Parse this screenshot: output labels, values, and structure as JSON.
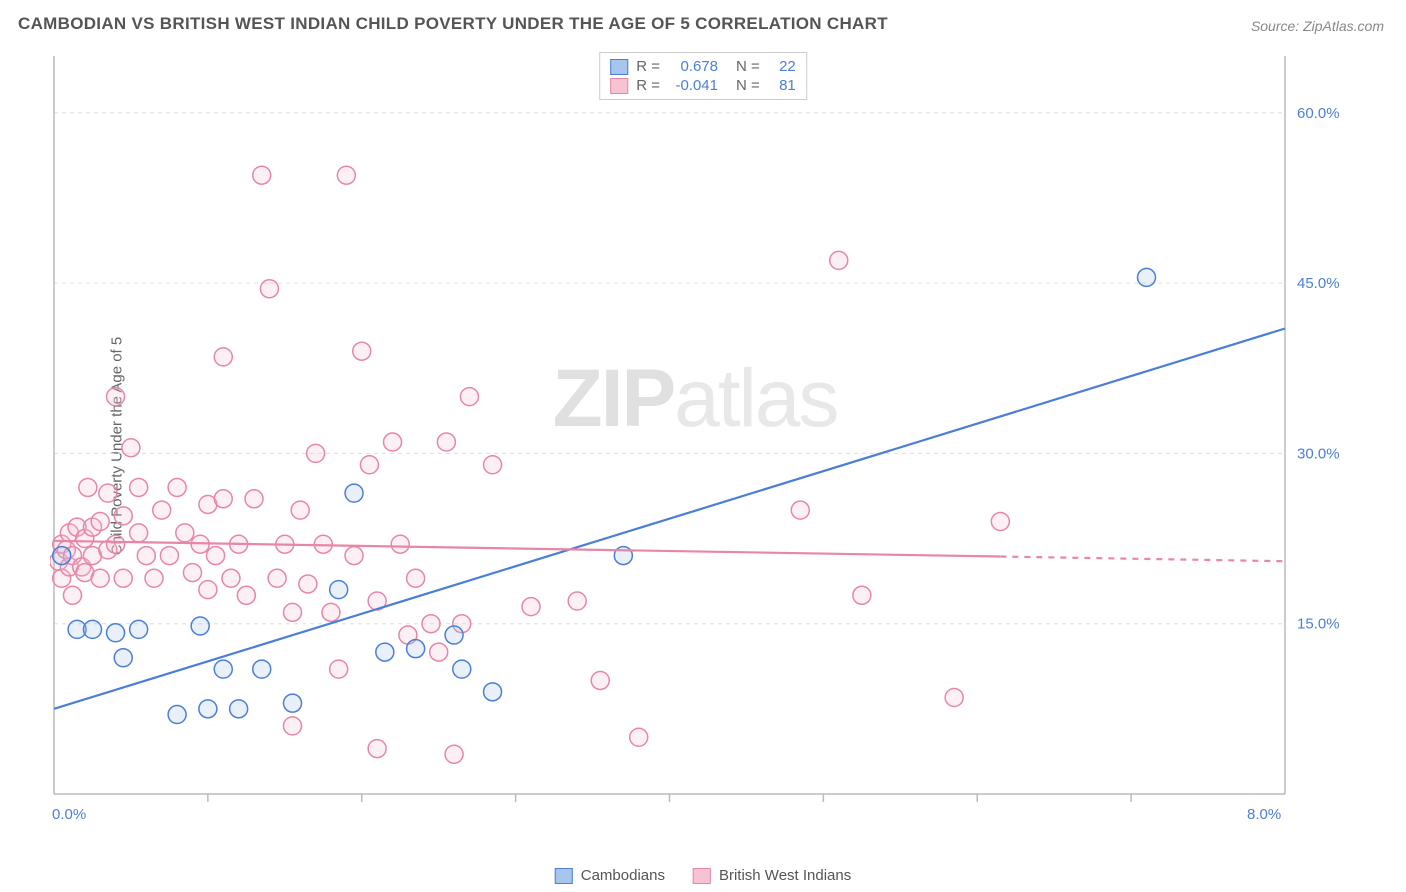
{
  "title": "CAMBODIAN VS BRITISH WEST INDIAN CHILD POVERTY UNDER THE AGE OF 5 CORRELATION CHART",
  "source": "Source: ZipAtlas.com",
  "ylabel": "Child Poverty Under the Age of 5",
  "watermark_bold": "ZIP",
  "watermark_rest": "atlas",
  "chart": {
    "type": "scatter-with-regression",
    "xlim": [
      0,
      8
    ],
    "ylim": [
      0,
      65
    ],
    "x_tick_labels": {
      "0": "0.0%",
      "8": "8.0%"
    },
    "y_tick_labels": {
      "15": "15.0%",
      "30": "30.0%",
      "45": "45.0%",
      "60": "60.0%"
    },
    "x_ticks": [
      1,
      2,
      3,
      4,
      5,
      6,
      7
    ],
    "grid_y": [
      15,
      30,
      45,
      60
    ],
    "grid_color": "#dddddd",
    "axis_color": "#bbbbbb",
    "background": "#ffffff",
    "label_color": "#4a7fd8",
    "marker_radius": 9,
    "marker_stroke_width": 1.5,
    "marker_fill_opacity": 0.25,
    "line_width": 2.2,
    "series": [
      {
        "name": "Cambodians",
        "color_stroke": "#4a7fd8",
        "color_fill": "#a8c5ed",
        "R": "0.678",
        "N": "22",
        "regression": {
          "x1": 0,
          "y1": 7.5,
          "x2": 8,
          "y2": 41,
          "dash_from_x": null
        },
        "points": [
          [
            0.05,
            21
          ],
          [
            0.15,
            14.5
          ],
          [
            0.25,
            14.5
          ],
          [
            0.4,
            14.2
          ],
          [
            0.45,
            12
          ],
          [
            0.55,
            14.5
          ],
          [
            0.8,
            7
          ],
          [
            0.95,
            14.8
          ],
          [
            1.0,
            7.5
          ],
          [
            1.1,
            11
          ],
          [
            1.2,
            7.5
          ],
          [
            1.35,
            11
          ],
          [
            1.55,
            8
          ],
          [
            1.85,
            18
          ],
          [
            1.95,
            26.5
          ],
          [
            2.15,
            12.5
          ],
          [
            2.35,
            12.8
          ],
          [
            2.6,
            14
          ],
          [
            2.65,
            11
          ],
          [
            2.85,
            9
          ],
          [
            3.7,
            21
          ],
          [
            7.1,
            45.5
          ]
        ]
      },
      {
        "name": "British West Indians",
        "color_stroke": "#e886a5",
        "color_fill": "#f6c3d3",
        "R": "-0.041",
        "N": "81",
        "regression": {
          "x1": 0,
          "y1": 22.3,
          "x2": 8,
          "y2": 20.5,
          "dash_from_x": 6.15
        },
        "points": [
          [
            0.03,
            20.5
          ],
          [
            0.05,
            22
          ],
          [
            0.05,
            19
          ],
          [
            0.08,
            21.5
          ],
          [
            0.1,
            20
          ],
          [
            0.1,
            23
          ],
          [
            0.12,
            17.5
          ],
          [
            0.12,
            21
          ],
          [
            0.15,
            23.5
          ],
          [
            0.18,
            20
          ],
          [
            0.2,
            22.5
          ],
          [
            0.2,
            19.5
          ],
          [
            0.22,
            27
          ],
          [
            0.25,
            23.5
          ],
          [
            0.25,
            21
          ],
          [
            0.3,
            24
          ],
          [
            0.3,
            19
          ],
          [
            0.35,
            26.5
          ],
          [
            0.35,
            21.5
          ],
          [
            0.4,
            35
          ],
          [
            0.4,
            22
          ],
          [
            0.45,
            24.5
          ],
          [
            0.45,
            19
          ],
          [
            0.5,
            30.5
          ],
          [
            0.55,
            23
          ],
          [
            0.55,
            27
          ],
          [
            0.6,
            21
          ],
          [
            0.65,
            19
          ],
          [
            0.7,
            25
          ],
          [
            0.75,
            21
          ],
          [
            0.8,
            27
          ],
          [
            0.85,
            23
          ],
          [
            0.9,
            19.5
          ],
          [
            0.95,
            22
          ],
          [
            1.0,
            18
          ],
          [
            1.0,
            25.5
          ],
          [
            1.05,
            21
          ],
          [
            1.1,
            26
          ],
          [
            1.1,
            38.5
          ],
          [
            1.15,
            19
          ],
          [
            1.2,
            22
          ],
          [
            1.25,
            17.5
          ],
          [
            1.3,
            26
          ],
          [
            1.35,
            54.5
          ],
          [
            1.4,
            44.5
          ],
          [
            1.45,
            19
          ],
          [
            1.5,
            22
          ],
          [
            1.55,
            16
          ],
          [
            1.55,
            6
          ],
          [
            1.6,
            25
          ],
          [
            1.65,
            18.5
          ],
          [
            1.7,
            30
          ],
          [
            1.75,
            22
          ],
          [
            1.8,
            16
          ],
          [
            1.85,
            11
          ],
          [
            1.9,
            54.5
          ],
          [
            1.95,
            21
          ],
          [
            2.0,
            39
          ],
          [
            2.05,
            29
          ],
          [
            2.1,
            17
          ],
          [
            2.1,
            4
          ],
          [
            2.2,
            31
          ],
          [
            2.25,
            22
          ],
          [
            2.3,
            14
          ],
          [
            2.35,
            19
          ],
          [
            2.45,
            15
          ],
          [
            2.5,
            12.5
          ],
          [
            2.55,
            31
          ],
          [
            2.6,
            3.5
          ],
          [
            2.65,
            15
          ],
          [
            2.7,
            35
          ],
          [
            2.85,
            29
          ],
          [
            3.1,
            16.5
          ],
          [
            3.4,
            17
          ],
          [
            3.55,
            10
          ],
          [
            3.8,
            5
          ],
          [
            4.85,
            25
          ],
          [
            5.1,
            47
          ],
          [
            5.25,
            17.5
          ],
          [
            5.85,
            8.5
          ],
          [
            6.15,
            24
          ]
        ]
      }
    ]
  },
  "legend": {
    "items": [
      {
        "label": "Cambodians",
        "fill": "#a8c5ed",
        "stroke": "#4a7fd8"
      },
      {
        "label": "British West Indians",
        "fill": "#f6c3d3",
        "stroke": "#e886a5"
      }
    ]
  }
}
